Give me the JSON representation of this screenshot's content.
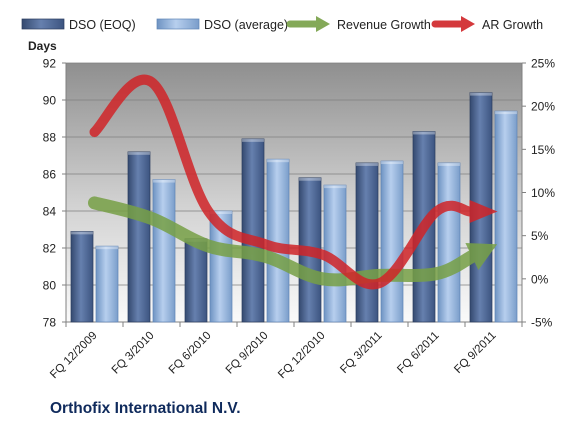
{
  "chart_data": {
    "type": "bar",
    "company": "Orthofix International N.V.",
    "ylabel": "Days",
    "categories": [
      "FQ 12/2009",
      "FQ 3/2010",
      "FQ 6/2010",
      "FQ 9/2010",
      "FQ 12/2010",
      "FQ 3/2011",
      "FQ 6/2011",
      "FQ 9/2011"
    ],
    "ylim": [
      78,
      92
    ],
    "yticks": [
      "78",
      "80",
      "82",
      "84",
      "86",
      "88",
      "90",
      "92"
    ],
    "y2lim": [
      -5,
      25
    ],
    "y2ticks": [
      "-5%",
      "0%",
      "5%",
      "10%",
      "15%",
      "20%",
      "25%"
    ],
    "grid": true,
    "legend_position": "top",
    "series": [
      {
        "name": "DSO (EOQ)",
        "kind": "bar",
        "axis": "left",
        "color": "#4F6A96",
        "values": [
          82.9,
          87.2,
          82.5,
          87.9,
          85.8,
          86.6,
          88.3,
          90.4
        ]
      },
      {
        "name": "DSO (average)",
        "kind": "bar",
        "axis": "left",
        "color": "#8DB3E2",
        "values": [
          82.1,
          85.7,
          84.0,
          86.8,
          85.4,
          86.7,
          86.6,
          89.4
        ]
      },
      {
        "name": "Revenue Growth",
        "kind": "arrow-line",
        "axis": "right",
        "color": "#77A046",
        "values": [
          8.8,
          7.0,
          3.8,
          2.6,
          0.0,
          0.4,
          0.6,
          3.8
        ]
      },
      {
        "name": "AR Growth",
        "kind": "arrow-line",
        "axis": "right",
        "color": "#D02428",
        "values": [
          17.0,
          22.8,
          7.8,
          4.0,
          2.8,
          -0.5,
          7.8,
          7.8
        ]
      }
    ]
  }
}
